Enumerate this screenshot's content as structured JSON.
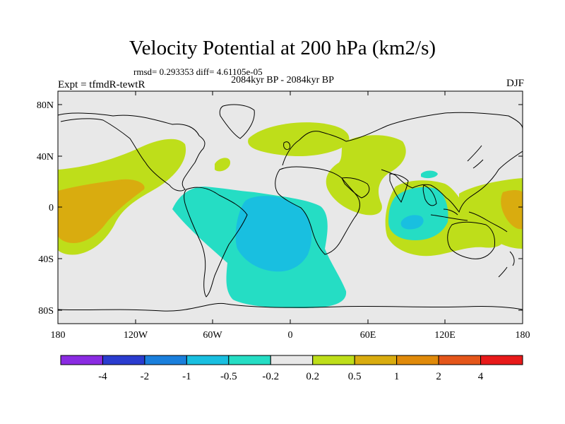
{
  "title": "Velocity Potential at 200 hPa (km2/s)",
  "stats": "rmsd= 0.293353  diff= 4.61105e-05",
  "period": "2084kyr BP - 2084kyr BP",
  "experiment": "Expt = tfmdR-tewtR",
  "season": "DJF",
  "lat_ticks": [
    "80N",
    "40N",
    "0",
    "40S",
    "80S"
  ],
  "lon_ticks": [
    "180",
    "120W",
    "60W",
    "0",
    "60E",
    "120E",
    "180"
  ],
  "colorbar": {
    "labels": [
      "-4",
      "-2",
      "-1",
      "-0.5",
      "-0.2",
      "0.2",
      "0.5",
      "1",
      "2",
      "4"
    ],
    "colors": [
      "#8a2be2",
      "#2a3ccf",
      "#1a7fdc",
      "#19bfe0",
      "#25ddc4",
      "#e8e8e8",
      "#bede1a",
      "#d9ac0f",
      "#e08a0a",
      "#e4561a",
      "#e81a1a"
    ]
  },
  "colors": {
    "background_field": "#e8e8e8",
    "weak_negative": "#25ddc4",
    "negative": "#19bfe0",
    "weak_positive": "#bede1a",
    "positive": "#d9ac0f"
  }
}
